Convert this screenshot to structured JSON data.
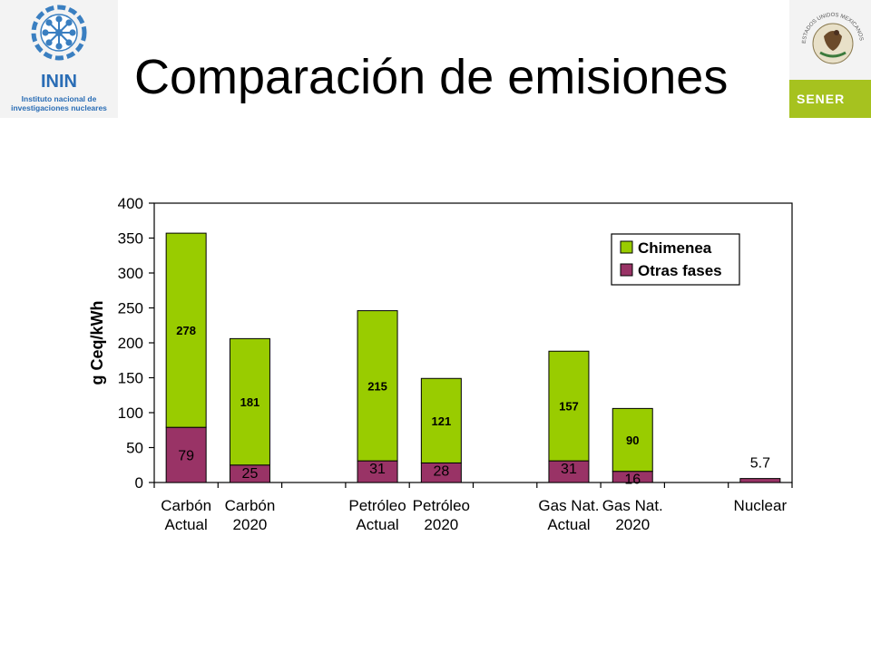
{
  "header": {
    "title": "Comparación de emisiones",
    "inin_logo": {
      "acronym": "ININ",
      "line1": "Instituto nacional de",
      "line2": "investigaciones nucleares"
    },
    "sener_logo": {
      "name": "SENER",
      "seal_text": "ESTADOS UNIDOS MEXICANOS"
    }
  },
  "chart_data": {
    "type": "bar",
    "stacked": true,
    "categories": [
      [
        "Carbón",
        "Actual"
      ],
      [
        "Carbón",
        "2020"
      ],
      [
        "",
        ""
      ],
      [
        "Petróleo",
        "Actual"
      ],
      [
        "Petróleo",
        "2020"
      ],
      [
        "",
        ""
      ],
      [
        "Gas Nat.",
        "Actual"
      ],
      [
        "Gas Nat.",
        "2020"
      ],
      [
        "",
        ""
      ],
      [
        "Nuclear",
        ""
      ]
    ],
    "series": [
      {
        "name": "Otras fases",
        "color": "#993366",
        "values": [
          79,
          25,
          null,
          31,
          28,
          null,
          31,
          16,
          null,
          5.7
        ],
        "labels": [
          "79",
          "25",
          "",
          "31",
          "28",
          "",
          "31",
          "16",
          "",
          "5.7"
        ]
      },
      {
        "name": "Chimenea",
        "color": "#99cc00",
        "values": [
          278,
          181,
          null,
          215,
          121,
          null,
          157,
          90,
          null,
          0
        ],
        "labels": [
          "278",
          "181",
          "",
          "215",
          "121",
          "",
          "157",
          "90",
          "",
          ""
        ]
      }
    ],
    "ylabel": "g Ceq/kWh",
    "xlabel": "",
    "ylim": [
      0,
      400
    ],
    "yticks": [
      0,
      50,
      100,
      150,
      200,
      250,
      300,
      350,
      400
    ],
    "legend": {
      "placement": "top-right",
      "order": [
        "Chimenea",
        "Otras fases"
      ]
    },
    "grid": false
  }
}
